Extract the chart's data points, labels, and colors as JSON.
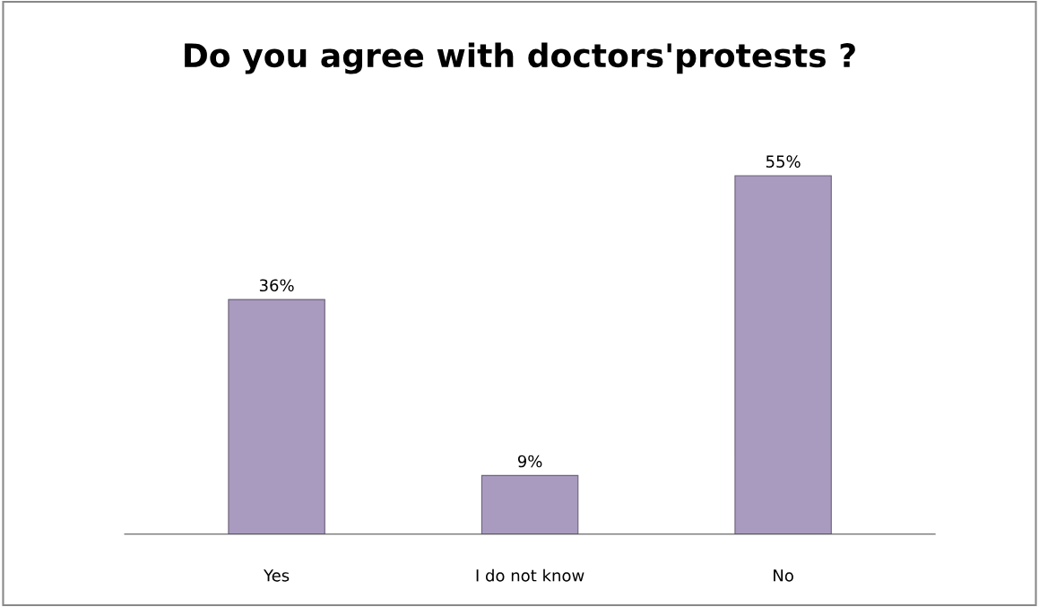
{
  "chart_data": {
    "type": "bar",
    "title": "Do you agree with doctors'protests ?",
    "categories": [
      "Yes",
      "I do not know",
      "No"
    ],
    "values": [
      36,
      9,
      55
    ],
    "value_labels": [
      "36%",
      "9%",
      "55%"
    ],
    "color": "#a99bc0",
    "grid": false
  }
}
